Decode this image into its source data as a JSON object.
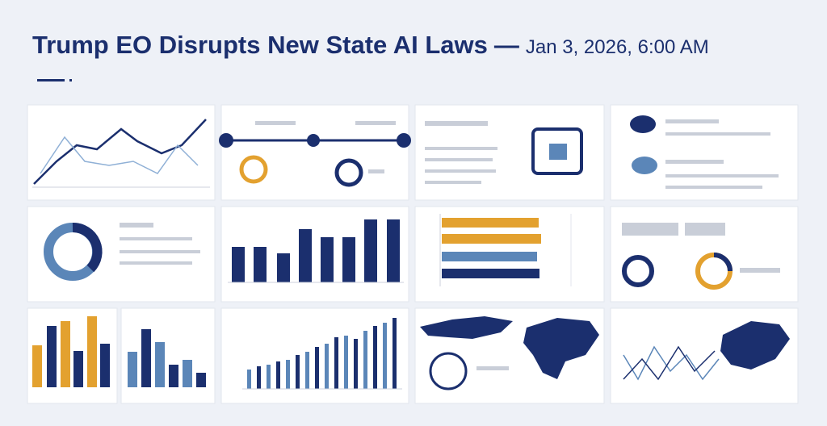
{
  "header": {
    "title": "Trump EO Disrupts New State AI Laws",
    "date": "Jan 3, 2026, 6:00 AM"
  }
}
